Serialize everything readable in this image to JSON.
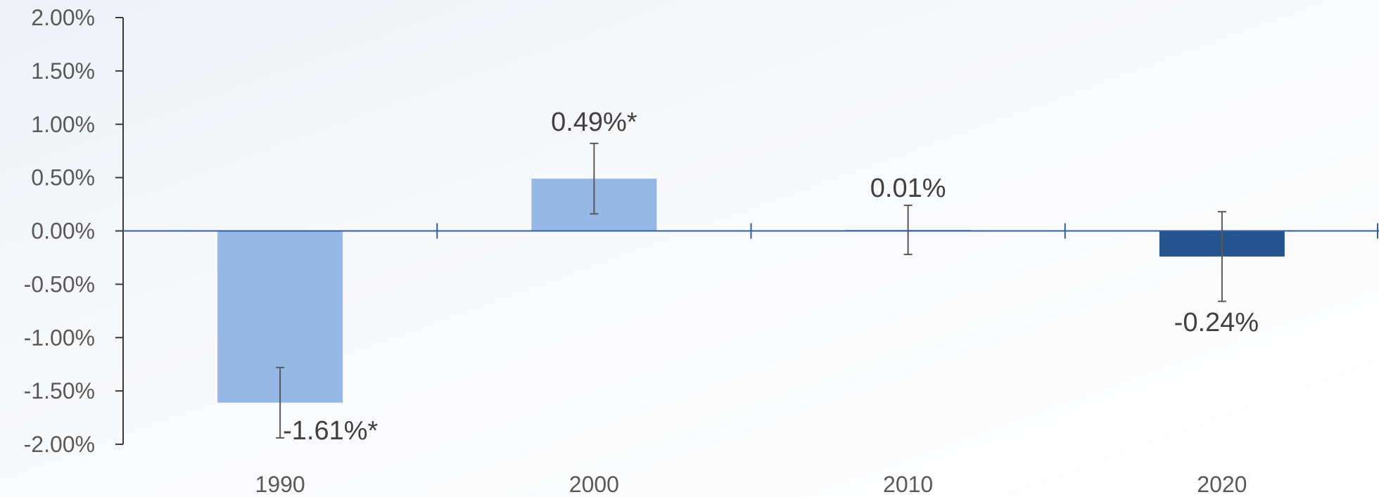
{
  "chart_data": {
    "type": "bar",
    "title": "",
    "xlabel": "",
    "ylabel": "",
    "categories": [
      "1990",
      "2000",
      "2010",
      "2020"
    ],
    "values": [
      -1.61,
      0.49,
      0.01,
      -0.24
    ],
    "error_bars": [
      {
        "low": -1.94,
        "high": -1.28
      },
      {
        "low": 0.16,
        "high": 0.82
      },
      {
        "low": -0.22,
        "high": 0.24
      },
      {
        "low": -0.66,
        "high": 0.18
      }
    ],
    "data_labels": [
      "-1.61%*",
      "0.49%*",
      "0.01%",
      "-0.24%"
    ],
    "bar_colors": [
      "#95b8e6",
      "#95b8e6",
      "#95b8e6",
      "#23548f"
    ],
    "ylim": [
      -2.0,
      2.0
    ],
    "yticks": [
      {
        "value": 2.0,
        "label": "2.00%"
      },
      {
        "value": 1.5,
        "label": "1.50%"
      },
      {
        "value": 1.0,
        "label": "1.00%"
      },
      {
        "value": 0.5,
        "label": "0.50%"
      },
      {
        "value": 0.0,
        "label": "0.00%"
      },
      {
        "value": -0.5,
        "label": "-0.50%"
      },
      {
        "value": -1.0,
        "label": "-1.00%"
      },
      {
        "value": -1.5,
        "label": "-1.50%"
      },
      {
        "value": -2.0,
        "label": "-2.00%"
      }
    ],
    "grid": false,
    "legend": "none",
    "colors": {
      "axis": "#3a3a3a",
      "zero_line": "#2f5f9e",
      "error_bar": "#595959",
      "tick_text": "#595959",
      "label_text": "#404040"
    }
  }
}
